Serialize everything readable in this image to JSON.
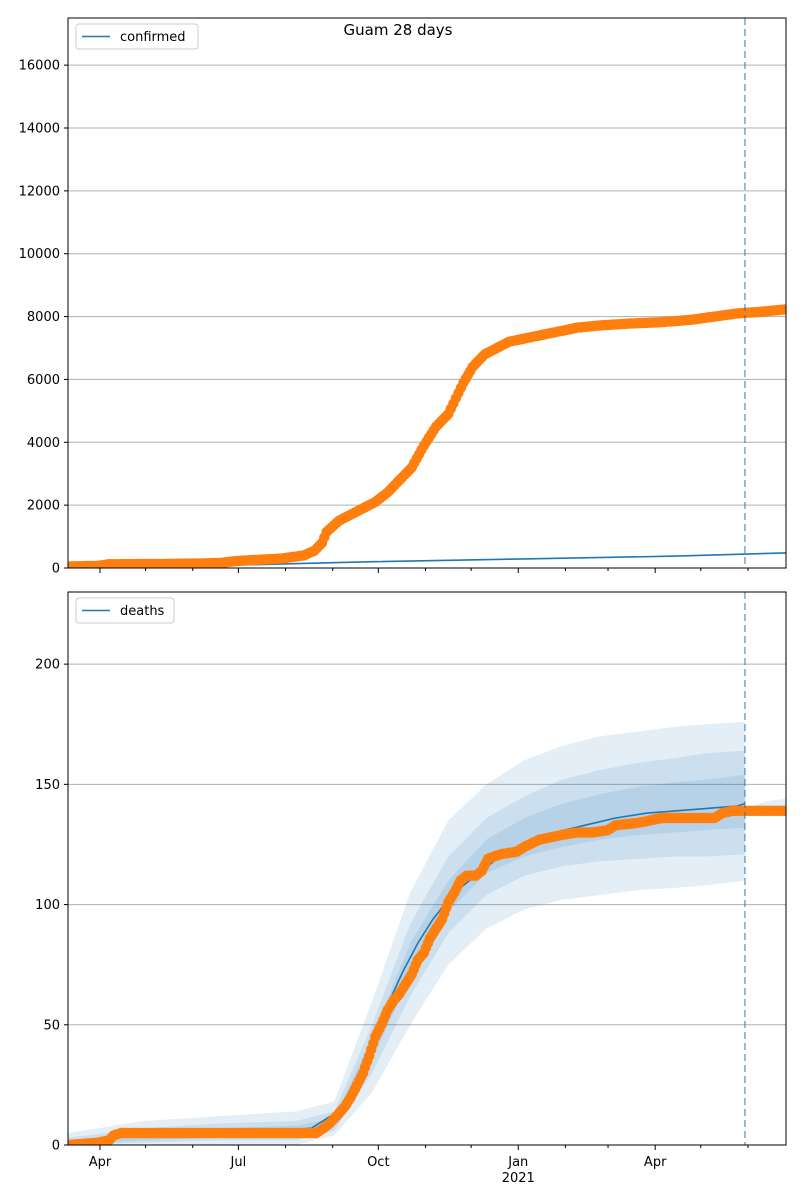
{
  "figure": {
    "title": "Guam 28 days"
  },
  "colors": {
    "model": "#1f77b4",
    "observed": "#ff7f0e",
    "band": "#1f77b4",
    "grid": "#b0b0b0"
  },
  "x_axis": {
    "ticks": [
      {
        "label": "Apr",
        "day": 21
      },
      {
        "label": "Jul",
        "day": 112
      },
      {
        "label": "Oct",
        "day": 204
      },
      {
        "label": "Jan",
        "day": 296
      },
      {
        "label": "Apr",
        "day": 386
      }
    ],
    "year_label": "2021",
    "year_day": 296
  },
  "chart_data": [
    {
      "type": "line",
      "legend": "confirmed",
      "title": "Guam 28 days",
      "xlabel": "",
      "ylabel": "",
      "x_units": "days since 2020-03-11",
      "xlim": [
        0,
        472
      ],
      "ylim": [
        0,
        17500
      ],
      "yticks": [
        0,
        2000,
        4000,
        6000,
        8000,
        10000,
        12000,
        14000,
        16000
      ],
      "grid": "y",
      "legend_position": "top-left",
      "forecast_start_day": 445,
      "series": [
        {
          "name": "confirmed",
          "style": "line",
          "points": [
            [
              0,
              0
            ],
            [
              100,
              80
            ],
            [
              200,
              200
            ],
            [
              300,
              290
            ],
            [
              400,
              380
            ],
            [
              472,
              480
            ]
          ]
        },
        {
          "name": "",
          "style": "markers",
          "points": [
            [
              0,
              50
            ],
            [
              20,
              70
            ],
            [
              27,
              120
            ],
            [
              60,
              130
            ],
            [
              80,
              140
            ],
            [
              100,
              160
            ],
            [
              110,
              220
            ],
            [
              120,
              250
            ],
            [
              140,
              300
            ],
            [
              155,
              400
            ],
            [
              162,
              550
            ],
            [
              167,
              800
            ],
            [
              170,
              1150
            ],
            [
              178,
              1500
            ],
            [
              186,
              1700
            ],
            [
              194,
              1900
            ],
            [
              202,
              2100
            ],
            [
              210,
              2400
            ],
            [
              218,
              2800
            ],
            [
              226,
              3200
            ],
            [
              234,
              3900
            ],
            [
              242,
              4500
            ],
            [
              250,
              4900
            ],
            [
              255,
              5400
            ],
            [
              260,
              5900
            ],
            [
              266,
              6400
            ],
            [
              274,
              6800
            ],
            [
              282,
              7000
            ],
            [
              290,
              7200
            ],
            [
              300,
              7300
            ],
            [
              310,
              7400
            ],
            [
              320,
              7500
            ],
            [
              335,
              7650
            ],
            [
              350,
              7720
            ],
            [
              370,
              7780
            ],
            [
              390,
              7820
            ],
            [
              410,
              7900
            ],
            [
              425,
              8000
            ],
            [
              440,
              8100
            ],
            [
              455,
              8150
            ],
            [
              472,
              8230
            ]
          ]
        }
      ]
    },
    {
      "type": "line",
      "legend": "deaths",
      "xlabel": "",
      "ylabel": "",
      "x_units": "days since 2020-03-11",
      "xlim": [
        0,
        472
      ],
      "ylim": [
        0,
        230
      ],
      "yticks": [
        0,
        50,
        100,
        150,
        200
      ],
      "grid": "y",
      "legend_position": "top-left",
      "forecast_start_day": 445,
      "series": [
        {
          "name": "deaths",
          "style": "line",
          "points": [
            [
              0,
              0
            ],
            [
              20,
              2
            ],
            [
              30,
              4
            ],
            [
              60,
              5
            ],
            [
              100,
              5
            ],
            [
              140,
              6
            ],
            [
              160,
              7
            ],
            [
              180,
              15
            ],
            [
              190,
              25
            ],
            [
              200,
              40
            ],
            [
              210,
              58
            ],
            [
              220,
              72
            ],
            [
              230,
              84
            ],
            [
              240,
              94
            ],
            [
              250,
              102
            ],
            [
              260,
              108
            ],
            [
              270,
              113
            ],
            [
              280,
              118
            ],
            [
              290,
              122
            ],
            [
              300,
              126
            ],
            [
              320,
              130
            ],
            [
              340,
              133
            ],
            [
              360,
              136
            ],
            [
              380,
              138
            ],
            [
              400,
              139
            ],
            [
              420,
              140
            ],
            [
              440,
              141
            ],
            [
              445,
              142
            ]
          ]
        },
        {
          "name": "",
          "style": "markers",
          "points": [
            [
              0,
              0
            ],
            [
              20,
              1
            ],
            [
              27,
              2
            ],
            [
              30,
              4
            ],
            [
              35,
              5
            ],
            [
              80,
              5
            ],
            [
              120,
              5
            ],
            [
              150,
              5
            ],
            [
              163,
              5
            ],
            [
              168,
              7
            ],
            [
              172,
              9
            ],
            [
              178,
              13
            ],
            [
              182,
              16
            ],
            [
              186,
              20
            ],
            [
              190,
              25
            ],
            [
              194,
              30
            ],
            [
              198,
              37
            ],
            [
              202,
              45
            ],
            [
              206,
              50
            ],
            [
              210,
              56
            ],
            [
              214,
              60
            ],
            [
              218,
              63
            ],
            [
              222,
              67
            ],
            [
              226,
              71
            ],
            [
              230,
              77
            ],
            [
              234,
              80
            ],
            [
              238,
              86
            ],
            [
              242,
              90
            ],
            [
              246,
              94
            ],
            [
              250,
              101
            ],
            [
              254,
              105
            ],
            [
              258,
              110
            ],
            [
              262,
              112
            ],
            [
              268,
              112
            ],
            [
              272,
              114
            ],
            [
              276,
              119
            ],
            [
              280,
              120
            ],
            [
              285,
              121
            ],
            [
              295,
              122
            ],
            [
              300,
              124
            ],
            [
              310,
              127
            ],
            [
              325,
              129
            ],
            [
              335,
              130
            ],
            [
              345,
              130
            ],
            [
              355,
              131
            ],
            [
              360,
              133
            ],
            [
              375,
              134
            ],
            [
              390,
              136
            ],
            [
              410,
              136
            ],
            [
              425,
              136
            ],
            [
              430,
              138
            ],
            [
              437,
              139
            ],
            [
              445,
              139
            ],
            [
              460,
              139
            ],
            [
              472,
              139
            ]
          ]
        }
      ],
      "bands": [
        {
          "upper": [
            [
              0,
              5
            ],
            [
              50,
              10
            ],
            [
              100,
              12
            ],
            [
              150,
              14
            ],
            [
              175,
              18
            ],
            [
              200,
              60
            ],
            [
              225,
              105
            ],
            [
              250,
              135
            ],
            [
              275,
              150
            ],
            [
              300,
              160
            ],
            [
              325,
              166
            ],
            [
              350,
              170
            ],
            [
              375,
              172
            ],
            [
              400,
              174
            ],
            [
              420,
              175
            ],
            [
              445,
              176
            ]
          ],
          "lower": [
            [
              0,
              0
            ],
            [
              50,
              0
            ],
            [
              100,
              0
            ],
            [
              150,
              0
            ],
            [
              175,
              4
            ],
            [
              200,
              22
            ],
            [
              225,
              50
            ],
            [
              250,
              75
            ],
            [
              275,
              90
            ],
            [
              300,
              98
            ],
            [
              325,
              102
            ],
            [
              350,
              104
            ],
            [
              375,
              106
            ],
            [
              400,
              107
            ],
            [
              420,
              108
            ],
            [
              445,
              110
            ]
          ]
        },
        {
          "upper": [
            [
              0,
              3
            ],
            [
              50,
              7
            ],
            [
              100,
              9
            ],
            [
              150,
              10
            ],
            [
              175,
              14
            ],
            [
              200,
              50
            ],
            [
              225,
              92
            ],
            [
              250,
              120
            ],
            [
              275,
              136
            ],
            [
              300,
              145
            ],
            [
              325,
              152
            ],
            [
              350,
              156
            ],
            [
              375,
              159
            ],
            [
              400,
              161
            ],
            [
              420,
              163
            ],
            [
              445,
              164
            ]
          ],
          "lower": [
            [
              0,
              0
            ],
            [
              50,
              1
            ],
            [
              100,
              2
            ],
            [
              150,
              2
            ],
            [
              175,
              6
            ],
            [
              200,
              30
            ],
            [
              225,
              62
            ],
            [
              250,
              88
            ],
            [
              275,
              104
            ],
            [
              300,
              112
            ],
            [
              325,
              116
            ],
            [
              350,
              118
            ],
            [
              375,
              119
            ],
            [
              400,
              120
            ],
            [
              420,
              120
            ],
            [
              445,
              121
            ]
          ]
        },
        {
          "upper": [
            [
              0,
              2
            ],
            [
              50,
              5
            ],
            [
              100,
              7
            ],
            [
              150,
              8
            ],
            [
              175,
              11
            ],
            [
              200,
              45
            ],
            [
              225,
              84
            ],
            [
              250,
              110
            ],
            [
              275,
              127
            ],
            [
              300,
              136
            ],
            [
              325,
              142
            ],
            [
              350,
              146
            ],
            [
              375,
              149
            ],
            [
              400,
              151
            ],
            [
              420,
              152
            ],
            [
              445,
              154
            ]
          ],
          "lower": [
            [
              0,
              0
            ],
            [
              50,
              2
            ],
            [
              100,
              3
            ],
            [
              150,
              4
            ],
            [
              175,
              8
            ],
            [
              200,
              36
            ],
            [
              225,
              70
            ],
            [
              250,
              97
            ],
            [
              275,
              113
            ],
            [
              300,
              120
            ],
            [
              325,
              124
            ],
            [
              350,
              127
            ],
            [
              375,
              129
            ],
            [
              400,
              130
            ],
            [
              420,
              131
            ],
            [
              445,
              132
            ]
          ]
        }
      ],
      "tail_band": {
        "upper": [
          [
            445,
            140
          ],
          [
            460,
            143
          ],
          [
            472,
            144
          ]
        ],
        "lower": [
          [
            445,
            138
          ],
          [
            460,
            138
          ],
          [
            472,
            138
          ]
        ]
      }
    }
  ]
}
